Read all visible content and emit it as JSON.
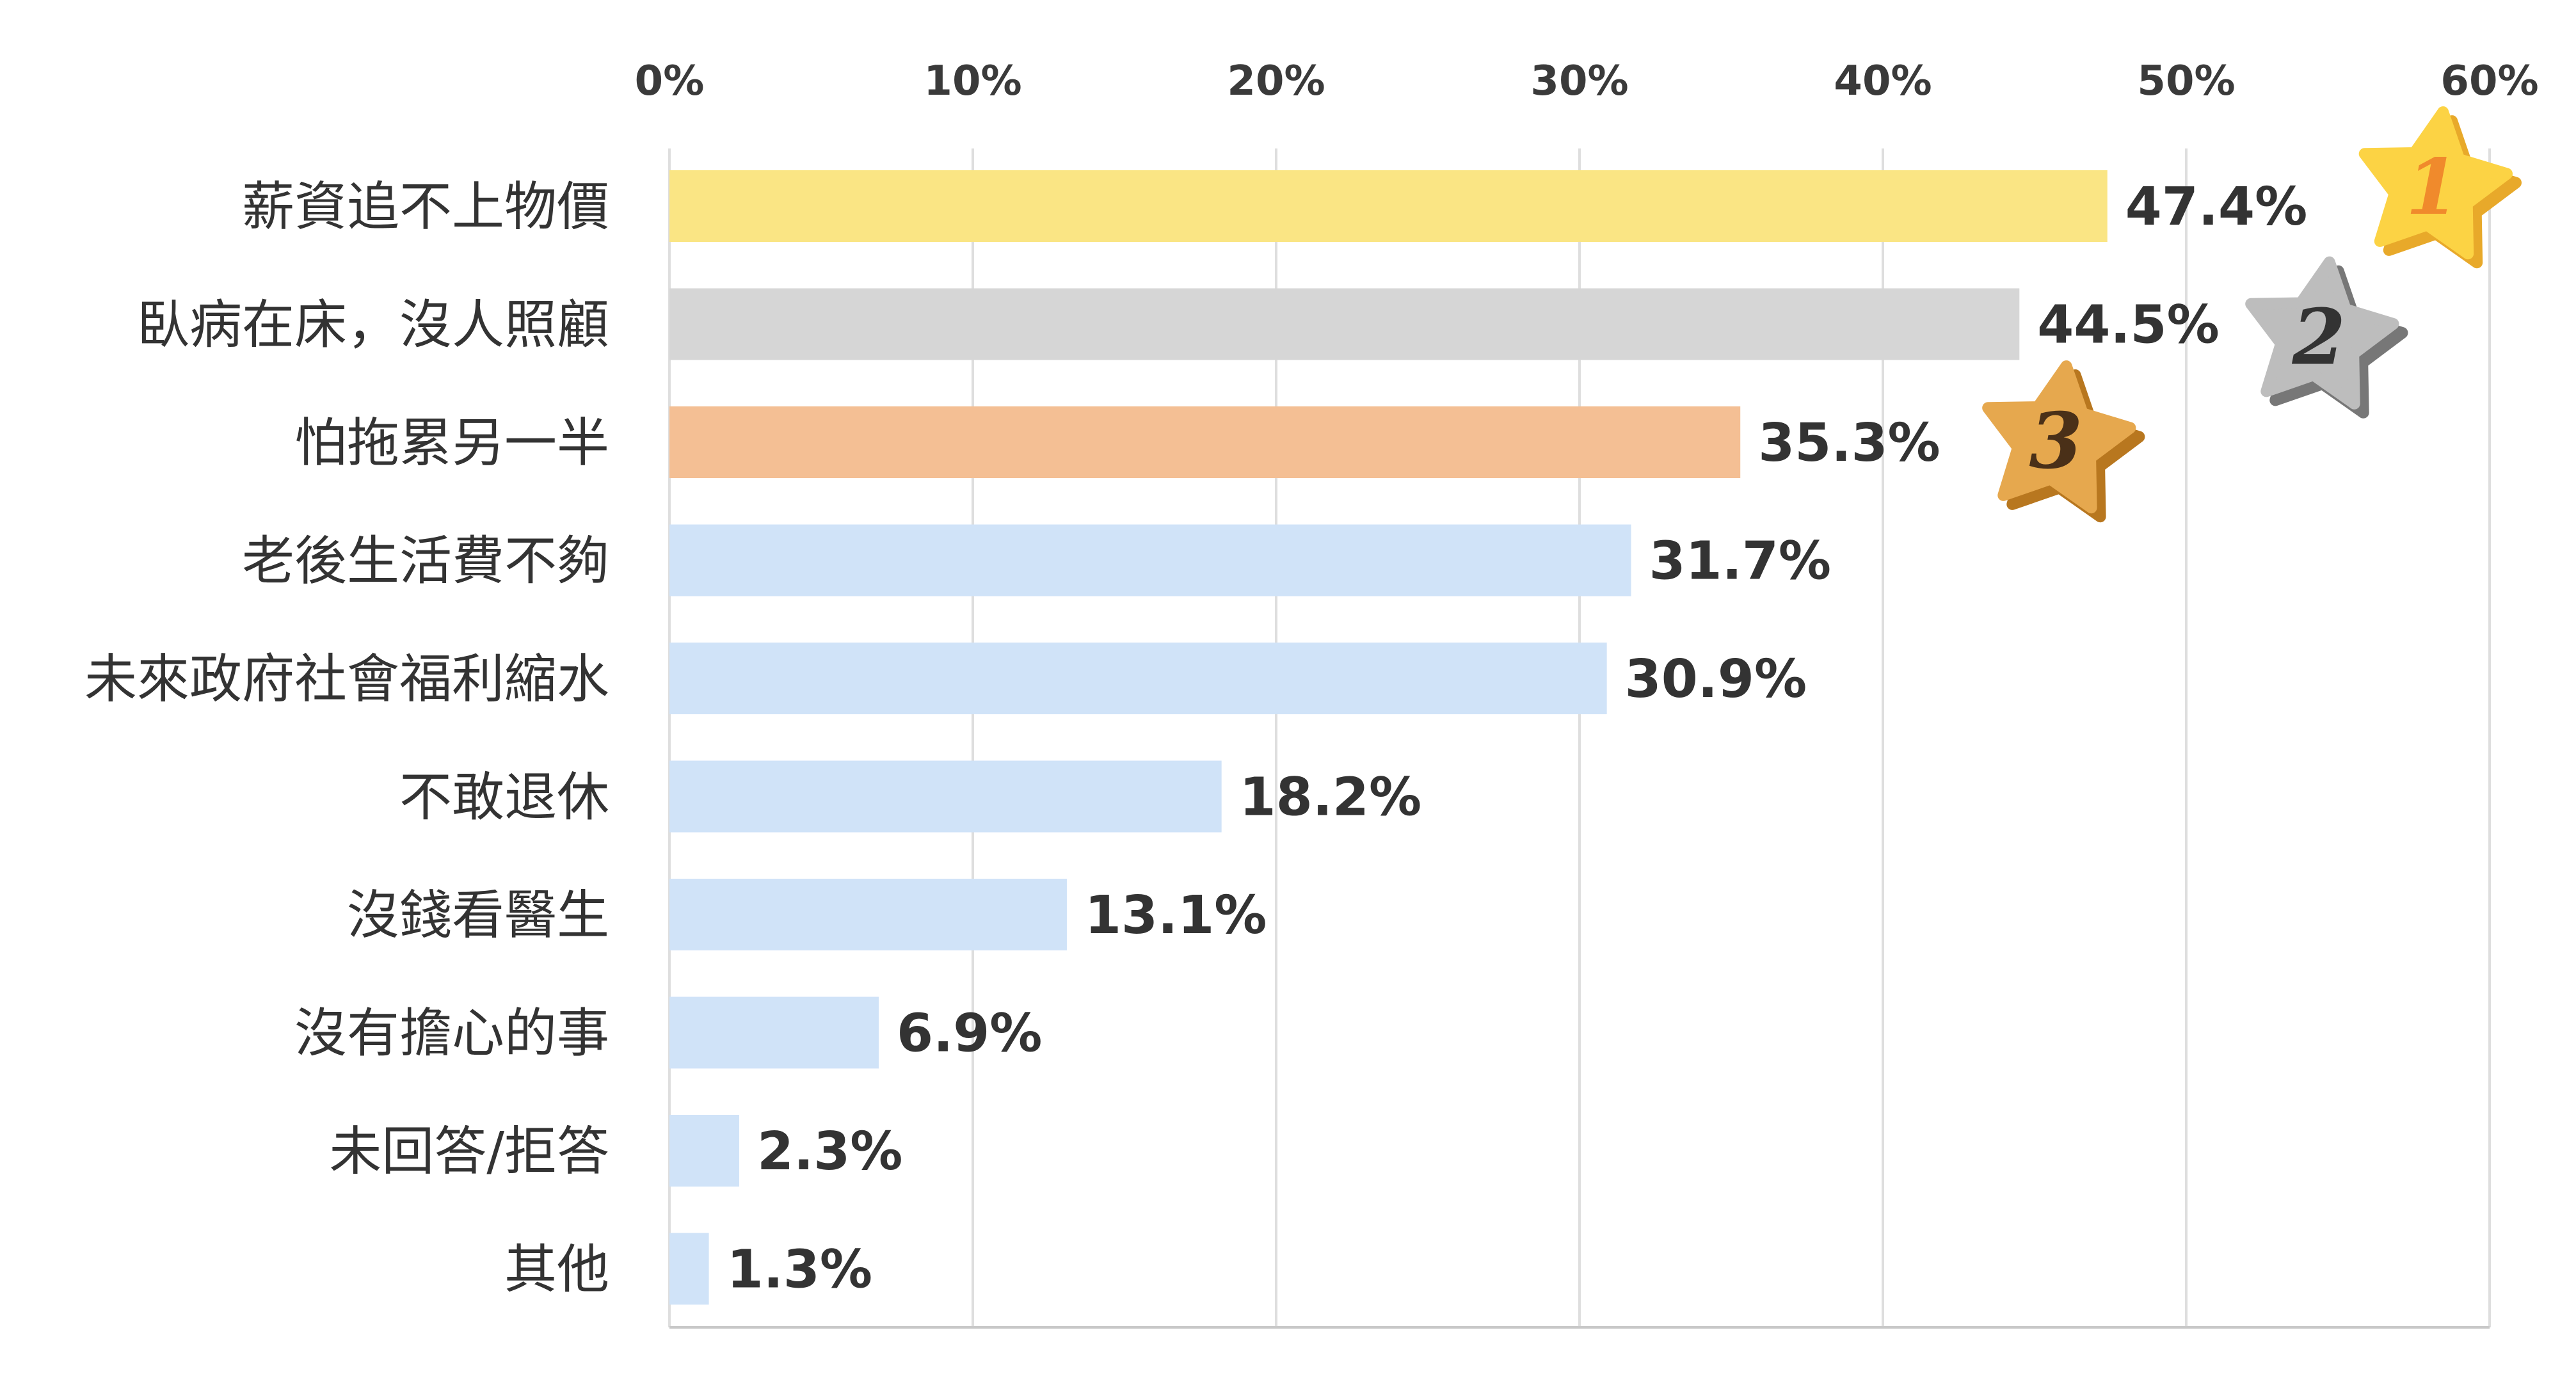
{
  "chart_data": {
    "type": "bar",
    "orientation": "horizontal",
    "categories": [
      "薪資追不上物價",
      "臥病在床，沒人照顧",
      "怕拖累另一半",
      "老後生活費不夠",
      "未來政府社會福利縮水",
      "不敢退休",
      "沒錢看醫生",
      "沒有擔心的事",
      "未回答/拒答",
      "其他"
    ],
    "values": [
      47.4,
      44.5,
      35.3,
      31.7,
      30.9,
      18.2,
      13.1,
      6.9,
      2.3,
      1.3
    ],
    "value_labels": [
      "47.4%",
      "44.5%",
      "35.3%",
      "31.7%",
      "30.9%",
      "18.2%",
      "13.1%",
      "6.9%",
      "2.3%",
      "1.3%"
    ],
    "xlim": [
      0,
      60
    ],
    "x_ticks": [
      0,
      10,
      20,
      30,
      40,
      50,
      60
    ],
    "x_tick_labels": [
      "0%",
      "10%",
      "20%",
      "30%",
      "40%",
      "50%",
      "60%"
    ],
    "x_axis_position": "top",
    "grid": true,
    "title": "",
    "xlabel": "",
    "ylabel": "",
    "bar_colors": [
      "#fae584",
      "#d6d6d6",
      "#f4bf94",
      "#d0e3f8",
      "#d0e3f8",
      "#d0e3f8",
      "#d0e3f8",
      "#d0e3f8",
      "#d0e3f8",
      "#d0e3f8"
    ],
    "rank_badges": [
      {
        "rank": "1",
        "star_color": "#fcd344",
        "star_shadow": "#e8a92a",
        "number_color": "#f08a2c"
      },
      {
        "rank": "2",
        "star_color": "#bdbdbd",
        "star_shadow": "#777777",
        "number_color": "#333333"
      },
      {
        "rank": "3",
        "star_color": "#e6a84e",
        "star_shadow": "#b8771f",
        "number_color": "#4a3018"
      }
    ]
  },
  "colors": {
    "grid": "#dedede",
    "axis": "#c8c8c8",
    "text": "#333333"
  }
}
